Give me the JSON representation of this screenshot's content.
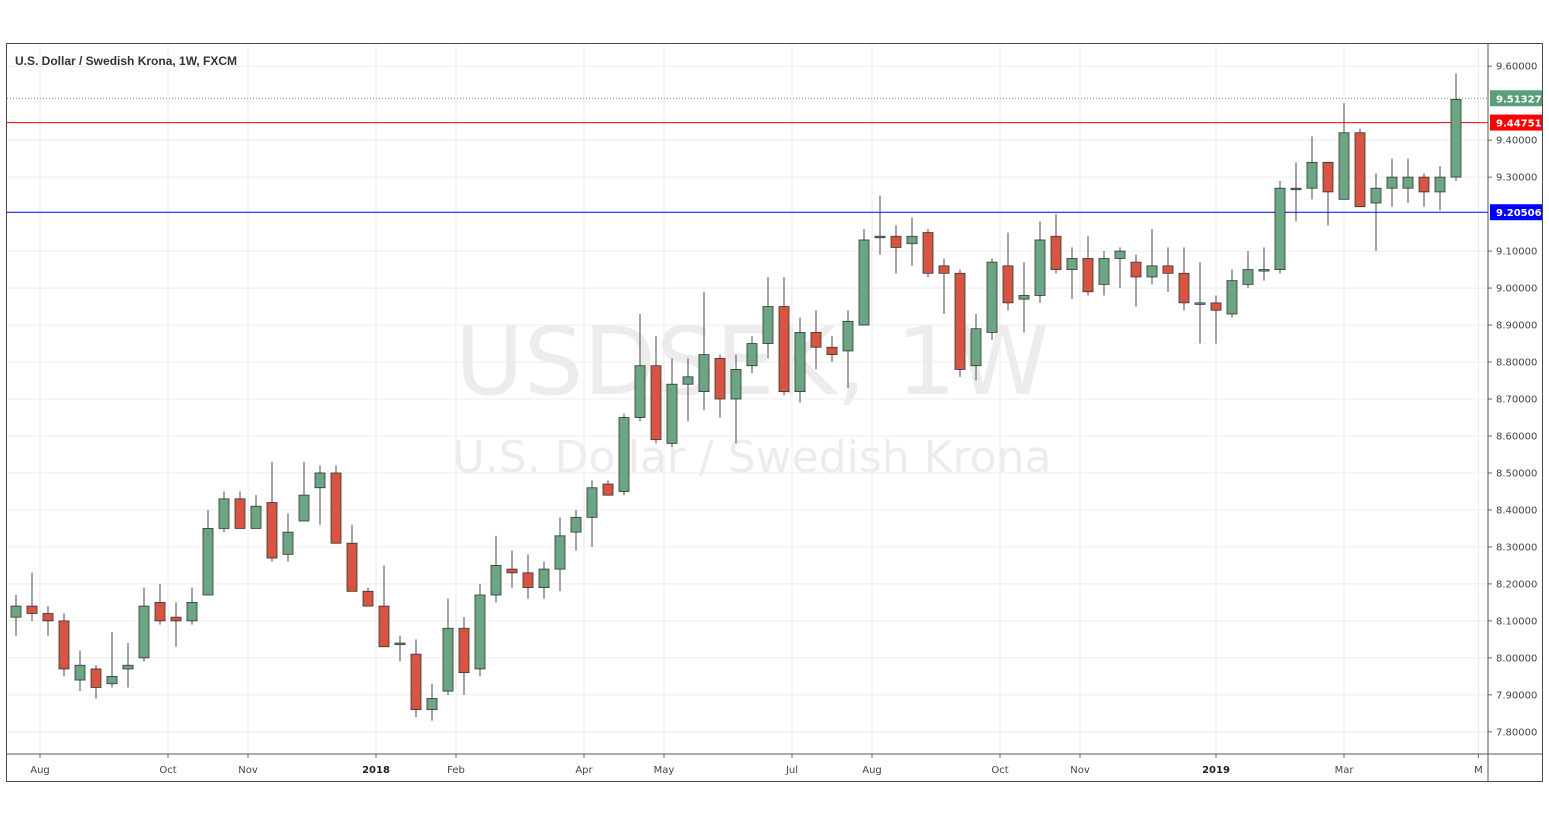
{
  "chart_data": {
    "type": "candlestick",
    "title": "U.S. Dollar / Swedish Krona, 1W, FXCM",
    "watermark": {
      "symbol": "USDSEK, 1W",
      "name": "U.S. Dollar / Swedish Krona"
    },
    "ylim": [
      7.74,
      9.66
    ],
    "y_ticks": [
      "9.60000",
      "9.40000",
      "9.30000",
      "9.10000",
      "9.00000",
      "8.90000",
      "8.80000",
      "8.70000",
      "8.60000",
      "8.50000",
      "8.40000",
      "8.30000",
      "8.20000",
      "8.10000",
      "8.00000",
      "7.90000",
      "7.80000"
    ],
    "x_tick_labels": [
      {
        "label": "Aug",
        "index": 1.5,
        "bold": false
      },
      {
        "label": "Oct",
        "index": 9.5,
        "bold": false
      },
      {
        "label": "Nov",
        "index": 14.5,
        "bold": false
      },
      {
        "label": "2018",
        "index": 22.5,
        "bold": true
      },
      {
        "label": "Feb",
        "index": 27.5,
        "bold": false
      },
      {
        "label": "Apr",
        "index": 35.5,
        "bold": false
      },
      {
        "label": "May",
        "index": 40.5,
        "bold": false
      },
      {
        "label": "Jul",
        "index": 48.5,
        "bold": false
      },
      {
        "label": "Aug",
        "index": 53.5,
        "bold": false
      },
      {
        "label": "Oct",
        "index": 61.5,
        "bold": false
      },
      {
        "label": "Nov",
        "index": 66.5,
        "bold": false
      },
      {
        "label": "2019",
        "index": 75,
        "bold": true
      },
      {
        "label": "Mar",
        "index": 83,
        "bold": false
      },
      {
        "label": "M",
        "index": 91.4,
        "bold": false
      }
    ],
    "horizontal_lines": [
      {
        "value": 9.44751,
        "label": "9.44751",
        "color": "#ff0000",
        "style": "solid"
      },
      {
        "value": 9.20506,
        "label": "9.20506",
        "color": "#0000ff",
        "style": "solid"
      },
      {
        "value": 9.51327,
        "label": "9.51327",
        "color": "#5a9e7a",
        "style": "dotted"
      }
    ],
    "colors": {
      "up": "#6ba583",
      "down": "#d75442",
      "wick": "#4a4a4a",
      "grid": "#ececec"
    },
    "ohlc": [
      [
        8.11,
        8.17,
        8.06,
        8.14
      ],
      [
        8.14,
        8.23,
        8.1,
        8.12
      ],
      [
        8.12,
        8.14,
        8.06,
        8.1
      ],
      [
        8.1,
        8.12,
        7.95,
        7.97
      ],
      [
        7.94,
        8.02,
        7.91,
        7.98
      ],
      [
        7.97,
        7.98,
        7.89,
        7.92
      ],
      [
        7.93,
        8.07,
        7.92,
        7.95
      ],
      [
        7.97,
        8.04,
        7.92,
        7.98
      ],
      [
        8.0,
        8.19,
        7.99,
        8.14
      ],
      [
        8.15,
        8.2,
        8.09,
        8.1
      ],
      [
        8.11,
        8.15,
        8.03,
        8.1
      ],
      [
        8.1,
        8.19,
        8.09,
        8.15
      ],
      [
        8.17,
        8.4,
        8.17,
        8.35
      ],
      [
        8.35,
        8.45,
        8.34,
        8.43
      ],
      [
        8.43,
        8.45,
        8.35,
        8.35
      ],
      [
        8.35,
        8.44,
        8.35,
        8.41
      ],
      [
        8.42,
        8.53,
        8.26,
        8.27
      ],
      [
        8.28,
        8.39,
        8.26,
        8.34
      ],
      [
        8.37,
        8.53,
        8.37,
        8.44
      ],
      [
        8.46,
        8.52,
        8.36,
        8.5
      ],
      [
        8.5,
        8.52,
        8.31,
        8.31
      ],
      [
        8.31,
        8.36,
        8.18,
        8.18
      ],
      [
        8.18,
        8.19,
        8.14,
        8.14
      ],
      [
        8.14,
        8.25,
        8.03,
        8.03
      ],
      [
        8.04,
        8.06,
        7.99,
        8.04
      ],
      [
        8.01,
        8.05,
        7.84,
        7.86
      ],
      [
        7.86,
        7.93,
        7.83,
        7.89
      ],
      [
        7.91,
        8.16,
        7.9,
        8.08
      ],
      [
        8.08,
        8.11,
        7.9,
        7.96
      ],
      [
        7.97,
        8.2,
        7.95,
        8.17
      ],
      [
        8.17,
        8.33,
        8.15,
        8.25
      ],
      [
        8.24,
        8.29,
        8.19,
        8.23
      ],
      [
        8.23,
        8.28,
        8.16,
        8.19
      ],
      [
        8.19,
        8.26,
        8.16,
        8.24
      ],
      [
        8.24,
        8.38,
        8.18,
        8.33
      ],
      [
        8.34,
        8.4,
        8.29,
        8.38
      ],
      [
        8.38,
        8.48,
        8.3,
        8.46
      ],
      [
        8.47,
        8.48,
        8.44,
        8.44
      ],
      [
        8.45,
        8.66,
        8.44,
        8.65
      ],
      [
        8.65,
        8.93,
        8.64,
        8.79
      ],
      [
        8.79,
        8.87,
        8.58,
        8.59
      ],
      [
        8.58,
        8.81,
        8.57,
        8.74
      ],
      [
        8.74,
        8.81,
        8.64,
        8.76
      ],
      [
        8.72,
        8.99,
        8.67,
        8.82
      ],
      [
        8.81,
        8.82,
        8.65,
        8.7
      ],
      [
        8.7,
        8.82,
        8.58,
        8.78
      ],
      [
        8.79,
        8.87,
        8.77,
        8.85
      ],
      [
        8.85,
        9.03,
        8.81,
        8.95
      ],
      [
        8.95,
        9.03,
        8.71,
        8.72
      ],
      [
        8.72,
        8.92,
        8.69,
        8.88
      ],
      [
        8.88,
        8.94,
        8.78,
        8.84
      ],
      [
        8.84,
        8.87,
        8.8,
        8.82
      ],
      [
        8.83,
        8.94,
        8.73,
        8.91
      ],
      [
        8.9,
        9.16,
        8.9,
        9.13
      ],
      [
        9.14,
        9.25,
        9.09,
        9.14
      ],
      [
        9.14,
        9.17,
        9.04,
        9.11
      ],
      [
        9.12,
        9.19,
        9.06,
        9.14
      ],
      [
        9.15,
        9.16,
        9.03,
        9.04
      ],
      [
        9.06,
        9.08,
        8.93,
        9.04
      ],
      [
        9.04,
        9.05,
        8.76,
        8.78
      ],
      [
        8.79,
        8.93,
        8.75,
        8.89
      ],
      [
        8.88,
        9.08,
        8.86,
        9.07
      ],
      [
        9.06,
        9.15,
        8.94,
        8.96
      ],
      [
        8.97,
        9.07,
        8.88,
        8.98
      ],
      [
        8.98,
        9.18,
        8.96,
        9.13
      ],
      [
        9.14,
        9.2,
        9.04,
        9.05
      ],
      [
        9.05,
        9.11,
        8.97,
        9.08
      ],
      [
        9.08,
        9.14,
        8.98,
        8.99
      ],
      [
        9.01,
        9.1,
        8.98,
        9.08
      ],
      [
        9.08,
        9.11,
        9.0,
        9.1
      ],
      [
        9.07,
        9.09,
        8.95,
        9.03
      ],
      [
        9.03,
        9.16,
        9.01,
        9.06
      ],
      [
        9.06,
        9.11,
        8.99,
        9.04
      ],
      [
        9.04,
        9.11,
        8.94,
        8.96
      ],
      [
        8.96,
        9.07,
        8.85,
        8.96
      ],
      [
        8.96,
        8.98,
        8.85,
        8.94
      ],
      [
        8.93,
        9.05,
        8.92,
        9.02
      ],
      [
        9.01,
        9.1,
        9.0,
        9.05
      ],
      [
        9.05,
        9.11,
        9.02,
        9.05
      ],
      [
        9.05,
        9.29,
        9.04,
        9.27
      ],
      [
        9.27,
        9.34,
        9.18,
        9.27
      ],
      [
        9.27,
        9.41,
        9.24,
        9.34
      ],
      [
        9.34,
        9.33,
        9.17,
        9.26
      ],
      [
        9.24,
        9.5,
        9.24,
        9.42
      ],
      [
        9.42,
        9.43,
        9.22,
        9.22
      ],
      [
        9.23,
        9.31,
        9.1,
        9.27
      ],
      [
        9.27,
        9.35,
        9.22,
        9.3
      ],
      [
        9.27,
        9.35,
        9.23,
        9.3
      ],
      [
        9.3,
        9.31,
        9.22,
        9.26
      ],
      [
        9.26,
        9.33,
        9.21,
        9.3
      ],
      [
        9.3,
        9.58,
        9.29,
        9.51
      ]
    ]
  }
}
